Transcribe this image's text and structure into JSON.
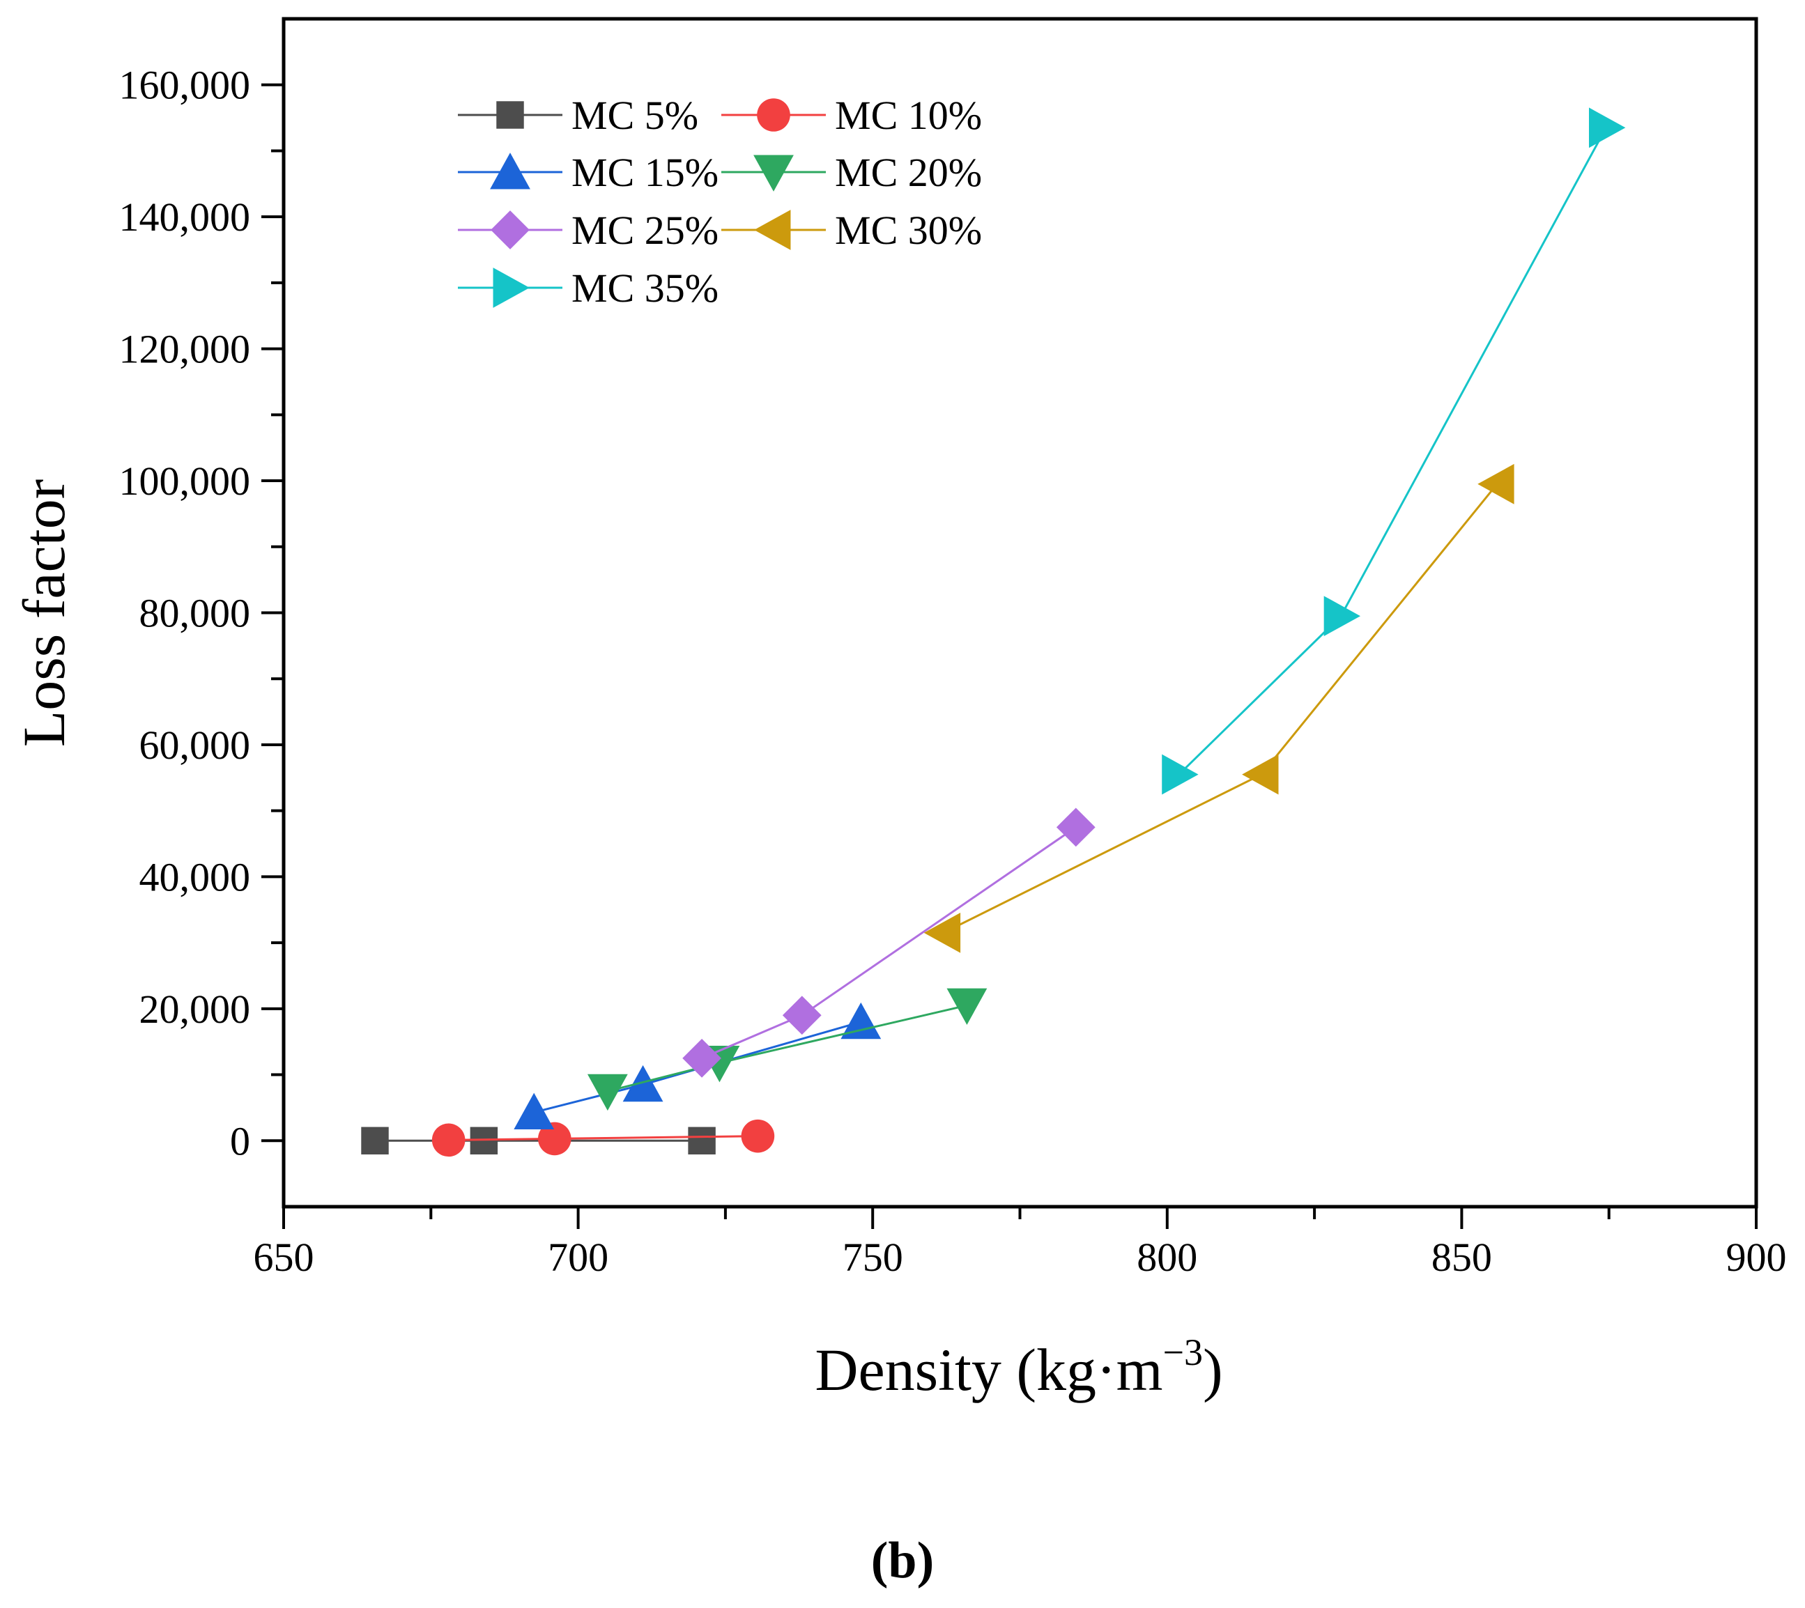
{
  "chart_data": {
    "type": "line",
    "title": "",
    "xlabel": "Density (kg·m",
    "xlabel_superscript": "−3",
    "xlabel_close": ")",
    "ylabel": "Loss factor",
    "xlim": [
      650,
      900
    ],
    "ylim": [
      -10000,
      170000
    ],
    "x_ticks": [
      650,
      700,
      750,
      800,
      850,
      900
    ],
    "x_tick_labels": [
      "650",
      "700",
      "750",
      "800",
      "850",
      "900"
    ],
    "y_ticks": [
      0,
      20000,
      40000,
      60000,
      80000,
      100000,
      120000,
      140000,
      160000
    ],
    "y_tick_labels": [
      "0",
      "20,000",
      "40,000",
      "60,000",
      "80,000",
      "100,000",
      "120,000",
      "140,000",
      "160,000"
    ],
    "grid": false,
    "legend_position": "top-left",
    "series": [
      {
        "name": "MC 5%",
        "marker": "square",
        "color": "#4d4d4d",
        "x": [
          665.5,
          684,
          721
        ],
        "y": [
          0,
          0,
          0
        ]
      },
      {
        "name": "MC 10%",
        "marker": "circle",
        "color": "#f24040",
        "x": [
          678,
          696,
          730.5
        ],
        "y": [
          100,
          300,
          700
        ]
      },
      {
        "name": "MC 15%",
        "marker": "triangle-up",
        "color": "#1c64d8",
        "x": [
          692.5,
          711,
          748
        ],
        "y": [
          4300,
          8500,
          18000
        ]
      },
      {
        "name": "MC 20%",
        "marker": "triangle-down",
        "color": "#2ea860",
        "x": [
          705,
          724,
          766
        ],
        "y": [
          7500,
          11800,
          20500
        ]
      },
      {
        "name": "MC 25%",
        "marker": "diamond",
        "color": "#b06fe0",
        "x": [
          721,
          738,
          784.5
        ],
        "y": [
          12500,
          19000,
          47500
        ]
      },
      {
        "name": "MC 30%",
        "marker": "triangle-left",
        "color": "#cc9a0d",
        "x": [
          762,
          816,
          856
        ],
        "y": [
          31500,
          55500,
          99500
        ]
      },
      {
        "name": "MC 35%",
        "marker": "triangle-right",
        "color": "#15c4c8",
        "x": [
          802,
          829.5,
          874.5
        ],
        "y": [
          55500,
          79500,
          153500
        ]
      }
    ]
  },
  "panel_label": "(b)"
}
